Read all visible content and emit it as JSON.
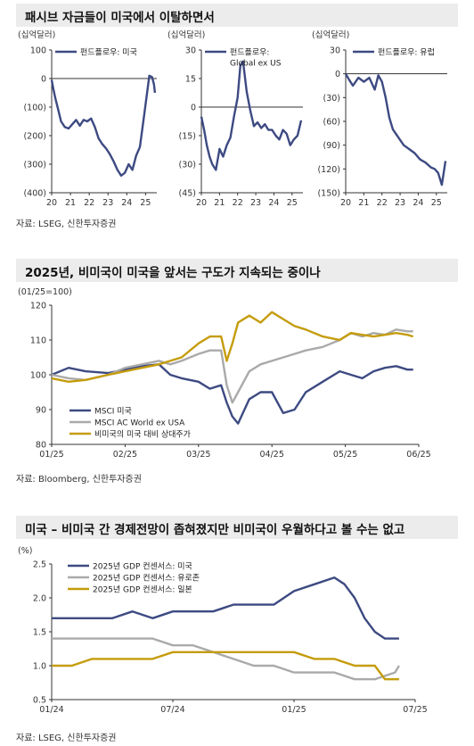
{
  "sections": [
    {
      "title": "패시브 자금들이 미국에서 이탈하면서",
      "source": "자료: LSEG, 신한투자증권"
    },
    {
      "title": "2025년, 비미국이 미국을 앞서는 구도가 지속되는 중이나",
      "source": "자료: Bloomberg, 신한투자증권"
    },
    {
      "title": "미국 – 비미국 간 경제전망이 좁혀졌지만 비미국이 우월하다고 볼 수는 없고",
      "source": "자료: LSEG, 신한투자증권"
    }
  ],
  "chart_data": [
    {
      "type": "line",
      "unit_label": "(십억달러)",
      "x_ticks": [
        "20",
        "21",
        "22",
        "23",
        "24",
        "25"
      ],
      "xlim": [
        2020,
        2025.6
      ],
      "yticks": [
        100,
        0,
        -100,
        -200,
        -300,
        -400
      ],
      "ytick_labels": [
        "100",
        "0",
        "(100)",
        "(200)",
        "(300)",
        "(400)"
      ],
      "ylim": [
        -400,
        100
      ],
      "grid": false,
      "legend": "top",
      "series": [
        {
          "name": "펀드플로우: 미국",
          "color": "#3d4a82",
          "x": [
            2020.0,
            2020.1,
            2020.2,
            2020.35,
            2020.5,
            2020.7,
            2020.9,
            2021.1,
            2021.3,
            2021.5,
            2021.7,
            2021.9,
            2022.1,
            2022.3,
            2022.5,
            2022.7,
            2022.9,
            2023.1,
            2023.3,
            2023.5,
            2023.7,
            2023.9,
            2024.1,
            2024.3,
            2024.5,
            2024.7,
            2024.9,
            2025.1,
            2025.2,
            2025.35,
            2025.45,
            2025.5
          ],
          "y": [
            -5,
            -40,
            -70,
            -110,
            -150,
            -170,
            -175,
            -160,
            -145,
            -165,
            -145,
            -150,
            -140,
            -170,
            -210,
            -230,
            -245,
            -265,
            -290,
            -320,
            -340,
            -330,
            -300,
            -320,
            -270,
            -240,
            -140,
            -40,
            10,
            5,
            -20,
            -50
          ]
        }
      ]
    },
    {
      "type": "line",
      "unit_label": "(십억달러)",
      "x_ticks": [
        "20",
        "21",
        "22",
        "23",
        "24",
        "25"
      ],
      "xlim": [
        2020,
        2025.6
      ],
      "yticks": [
        30,
        15,
        0,
        -15,
        -30,
        -45
      ],
      "ytick_labels": [
        "30",
        "15",
        "0",
        "(15)",
        "(30)",
        "(45)"
      ],
      "ylim": [
        -45,
        30
      ],
      "grid": false,
      "legend": "top",
      "series": [
        {
          "name": "펀드플로우: Global ex US",
          "color": "#3d4a82",
          "x": [
            2020.0,
            2020.15,
            2020.3,
            2020.45,
            2020.6,
            2020.8,
            2021.0,
            2021.2,
            2021.4,
            2021.6,
            2021.8,
            2022.0,
            2022.15,
            2022.3,
            2022.5,
            2022.7,
            2022.9,
            2023.1,
            2023.3,
            2023.5,
            2023.7,
            2023.9,
            2024.1,
            2024.3,
            2024.5,
            2024.7,
            2024.9,
            2025.1,
            2025.3,
            2025.5
          ],
          "y": [
            -5,
            -12,
            -20,
            -26,
            -30,
            -33,
            -22,
            -26,
            -20,
            -16,
            -5,
            5,
            22,
            24,
            8,
            -2,
            -10,
            -8,
            -11,
            -9,
            -12,
            -12,
            -15,
            -17,
            -12,
            -14,
            -20,
            -17,
            -15,
            -7
          ]
        }
      ]
    },
    {
      "type": "line",
      "unit_label": "(십억달러)",
      "x_ticks": [
        "20",
        "21",
        "22",
        "23",
        "24",
        "25"
      ],
      "xlim": [
        2020,
        2025.6
      ],
      "yticks": [
        30,
        0,
        -30,
        -60,
        -90,
        -120,
        -150
      ],
      "ytick_labels": [
        "30",
        "0",
        "(30)",
        "(60)",
        "(90)",
        "(120)",
        "(150)"
      ],
      "ylim": [
        -150,
        30
      ],
      "grid": false,
      "legend": "top",
      "series": [
        {
          "name": "펀드플로우: 유럽",
          "color": "#3d4a82",
          "x": [
            2020.0,
            2020.2,
            2020.4,
            2020.7,
            2021.0,
            2021.3,
            2021.6,
            2021.8,
            2022.0,
            2022.2,
            2022.4,
            2022.6,
            2022.9,
            2023.2,
            2023.5,
            2023.8,
            2024.1,
            2024.4,
            2024.7,
            2024.9,
            2025.1,
            2025.3,
            2025.5
          ],
          "y": [
            0,
            -8,
            -15,
            -5,
            -10,
            -5,
            -20,
            -2,
            -10,
            -30,
            -55,
            -70,
            -80,
            -90,
            -95,
            -100,
            -108,
            -112,
            -118,
            -120,
            -125,
            -140,
            -110
          ]
        }
      ]
    },
    {
      "type": "line",
      "unit_label": "(01/25=100)",
      "x_ticks": [
        "01/25",
        "02/25",
        "03/25",
        "04/25",
        "05/25",
        "06/25"
      ],
      "xlim": [
        0,
        6.5
      ],
      "yticks": [
        120,
        110,
        100,
        90,
        80
      ],
      "ytick_labels": [
        "120",
        "110",
        "100",
        "90",
        "80"
      ],
      "ylim": [
        80,
        120
      ],
      "grid": false,
      "legend": "bottom-left",
      "series": [
        {
          "name": "MSCI 미국",
          "color": "#3d4a82",
          "x": [
            0,
            0.3,
            0.6,
            1.0,
            1.3,
            1.6,
            1.9,
            2.1,
            2.3,
            2.6,
            2.8,
            3.0,
            3.1,
            3.2,
            3.3,
            3.5,
            3.7,
            3.9,
            4.1,
            4.3,
            4.5,
            4.8,
            5.1,
            5.3,
            5.5,
            5.7,
            5.9,
            6.1,
            6.3,
            6.4
          ],
          "y": [
            100,
            102,
            101,
            100.5,
            101.5,
            102.5,
            103,
            100,
            99,
            98,
            96,
            97,
            92,
            88,
            86,
            93,
            95,
            95,
            89,
            90,
            95,
            98,
            101,
            100,
            99,
            101,
            102,
            102.5,
            101.5,
            101.5
          ]
        },
        {
          "name": "MSCI AC World ex USA",
          "color": "#aaaaaa",
          "x": [
            0,
            0.3,
            0.6,
            1.0,
            1.3,
            1.6,
            1.9,
            2.1,
            2.3,
            2.6,
            2.8,
            3.0,
            3.1,
            3.2,
            3.3,
            3.5,
            3.7,
            3.9,
            4.1,
            4.3,
            4.5,
            4.8,
            5.1,
            5.3,
            5.5,
            5.7,
            5.9,
            6.1,
            6.3,
            6.4
          ],
          "y": [
            100,
            99,
            98.5,
            100,
            102,
            103,
            104,
            103,
            104,
            106,
            107,
            107,
            97,
            92,
            95,
            101,
            103,
            104,
            105,
            106,
            107,
            108,
            110,
            112,
            111,
            112,
            111.5,
            113,
            112.5,
            112.5
          ]
        },
        {
          "name": "비미국의 미국 대비 상대주가",
          "color": "#c59c0c",
          "x": [
            0,
            0.3,
            0.6,
            1.0,
            1.3,
            1.6,
            1.9,
            2.1,
            2.3,
            2.6,
            2.8,
            3.0,
            3.1,
            3.2,
            3.3,
            3.5,
            3.7,
            3.9,
            4.1,
            4.3,
            4.5,
            4.8,
            5.1,
            5.3,
            5.5,
            5.7,
            5.9,
            6.1,
            6.3,
            6.4
          ],
          "y": [
            99,
            98,
            98.5,
            100,
            101,
            102,
            103,
            104,
            105,
            109,
            111,
            111,
            104,
            109,
            115,
            117,
            115,
            118,
            116,
            114,
            113,
            111,
            110,
            112,
            111.5,
            111,
            111.5,
            112,
            111.5,
            111
          ]
        }
      ]
    },
    {
      "type": "line",
      "unit_label": "(%)",
      "x_ticks": [
        "01/24",
        "07/24",
        "01/25",
        "07/25"
      ],
      "xlim": [
        0,
        18
      ],
      "yticks": [
        2.5,
        2.0,
        1.5,
        1.0,
        0.5
      ],
      "ytick_labels": [
        "2.5",
        "2.0",
        "1.5",
        "1.0",
        "0.5"
      ],
      "ylim": [
        0.5,
        2.5
      ],
      "grid": false,
      "legend": "top-left",
      "series": [
        {
          "name": "2025년 GDP 컨센서스: 미국",
          "color": "#3d4a82",
          "x": [
            0,
            1,
            2,
            3,
            4,
            5,
            6,
            7,
            8,
            9,
            10,
            11,
            12,
            13,
            14,
            14.5,
            15,
            15.5,
            16,
            16.5,
            17,
            17.2
          ],
          "y": [
            1.7,
            1.7,
            1.7,
            1.7,
            1.8,
            1.7,
            1.8,
            1.8,
            1.8,
            1.9,
            1.9,
            1.9,
            2.1,
            2.2,
            2.3,
            2.2,
            2.0,
            1.7,
            1.5,
            1.4,
            1.4,
            1.4
          ]
        },
        {
          "name": "2025년 GDP 컨센서스: 유로존",
          "color": "#aaaaaa",
          "x": [
            0,
            1,
            2,
            3,
            4,
            5,
            6,
            7,
            8,
            9,
            10,
            11,
            12,
            13,
            14,
            15,
            16,
            16.5,
            17,
            17.2
          ],
          "y": [
            1.4,
            1.4,
            1.4,
            1.4,
            1.4,
            1.4,
            1.3,
            1.3,
            1.2,
            1.1,
            1.0,
            1.0,
            0.9,
            0.9,
            0.9,
            0.8,
            0.8,
            0.85,
            0.9,
            1.0
          ]
        },
        {
          "name": "2025년 GDP 컨센서스: 일본",
          "color": "#c59c0c",
          "x": [
            0,
            1,
            2,
            3,
            4,
            5,
            6,
            7,
            8,
            9,
            10,
            11,
            12,
            13,
            14,
            15,
            16,
            16.5,
            17,
            17.2
          ],
          "y": [
            1.0,
            1.0,
            1.1,
            1.1,
            1.1,
            1.1,
            1.2,
            1.2,
            1.2,
            1.2,
            1.2,
            1.2,
            1.2,
            1.1,
            1.1,
            1.0,
            1.0,
            0.8,
            0.8,
            0.8
          ]
        }
      ]
    }
  ]
}
